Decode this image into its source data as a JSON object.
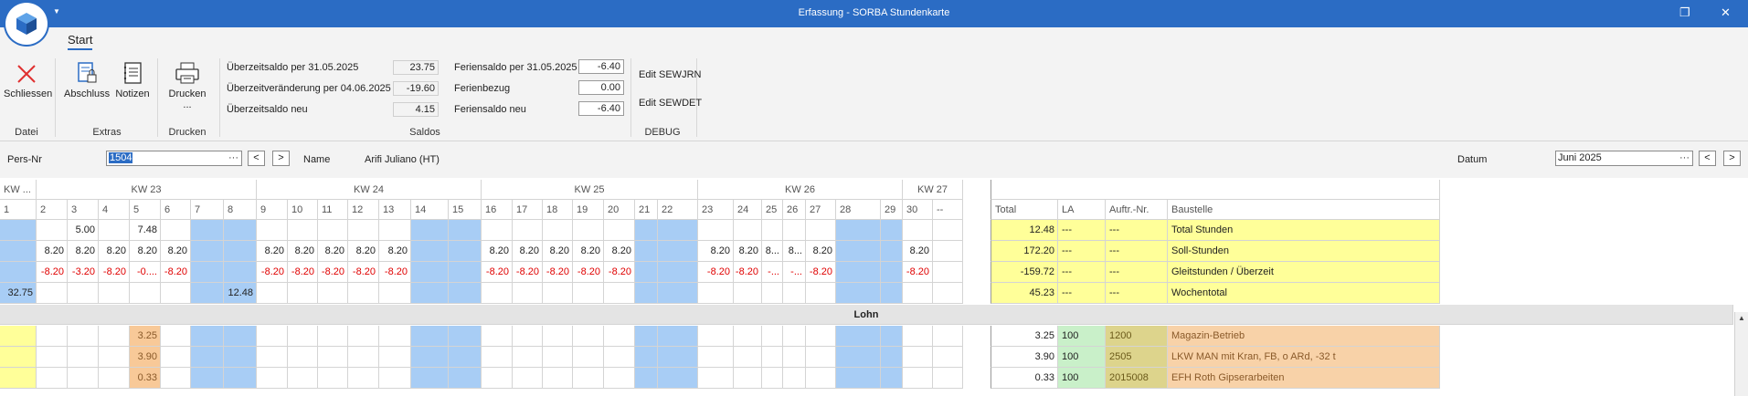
{
  "window": {
    "title": "Erfassung - SORBA Stundenkarte"
  },
  "ribbon": {
    "tab": "Start",
    "buttons": {
      "schliessen": "Schliessen",
      "abschluss": "Abschluss",
      "notizen": "Notizen",
      "drucken": "Drucken",
      "drucken_more": "..."
    },
    "groups": {
      "datei": "Datei",
      "extras": "Extras",
      "drucken": "Drucken",
      "saldos": "Saldos",
      "debug": "DEBUG"
    },
    "saldos": [
      {
        "label": "Überzeitsaldo per 31.05.2025",
        "value": "23.75"
      },
      {
        "label": "Überzeitveränderung per 04.06.2025",
        "value": "-19.60"
      },
      {
        "label": "Überzeitsaldo neu",
        "value": "4.15"
      }
    ],
    "ferien": [
      {
        "label": "Feriensaldo per 31.05.2025",
        "value": "-6.40"
      },
      {
        "label": "Ferienbezug",
        "value": "0.00"
      },
      {
        "label": "Feriensaldo neu",
        "value": "-6.40"
      }
    ],
    "debug": {
      "edit1": "Edit SEWJRN",
      "edit2": "Edit SEWDET"
    }
  },
  "filter": {
    "persnr_label": "Pers-Nr",
    "persnr_value": "1504",
    "combo_dots": "···",
    "prev": "<",
    "next": ">",
    "name_label": "Name",
    "name_value": "Arifi Juliano (HT)",
    "datum_label": "Datum",
    "datum_value": "Juni 2025"
  },
  "grid": {
    "weeks": [
      "KW ...",
      "KW 23",
      "KW 24",
      "KW 25",
      "KW 26",
      "KW 27"
    ],
    "days": [
      "1",
      "2",
      "3",
      "4",
      "5",
      "6",
      "7",
      "8",
      "9",
      "10",
      "11",
      "12",
      "13",
      "14",
      "15",
      "16",
      "17",
      "18",
      "19",
      "20",
      "21",
      "22",
      "23",
      "24",
      "25",
      "26",
      "27",
      "28",
      "29",
      "30",
      "--"
    ],
    "right_headers": [
      "Total",
      "LA",
      "Auftr.-Nr.",
      "Baustelle"
    ],
    "summary_rows": [
      {
        "cells": {
          "3": "5.00",
          "5": "7.48"
        },
        "total": "12.48",
        "la": "---",
        "auftr": "---",
        "baustelle": "Total Stunden"
      },
      {
        "cells": {
          "2": "8.20",
          "3": "8.20",
          "4": "8.20",
          "5": "8.20",
          "6": "8.20",
          "9": "8.20",
          "10": "8.20",
          "11": "8.20",
          "12": "8.20",
          "13": "8.20",
          "16": "8.20",
          "17": "8.20",
          "18": "8.20",
          "19": "8.20",
          "20": "8.20",
          "23": "8.20",
          "24": "8.20",
          "25": "8...",
          "26": "8...",
          "27": "8.20",
          "30": "8.20"
        },
        "total": "172.20",
        "la": "---",
        "auftr": "---",
        "baustelle": "Soll-Stunden"
      },
      {
        "cells": {
          "2": "-8.20",
          "3": "-3.20",
          "4": "-8.20",
          "5": "-0....",
          "6": "-8.20",
          "9": "-8.20",
          "10": "-8.20",
          "11": "-8.20",
          "12": "-8.20",
          "13": "-8.20",
          "16": "-8.20",
          "17": "-8.20",
          "18": "-8.20",
          "19": "-8.20",
          "20": "-8.20",
          "23": "-8.20",
          "24": "-8.20",
          "25": "-...",
          "26": "-...",
          "27": "-8.20",
          "30": "-8.20"
        },
        "total": "-159.72",
        "la": "---",
        "auftr": "---",
        "baustelle": "Gleitstunden / Überzeit"
      },
      {
        "cells": {
          "1": "32.75",
          "8": "12.48"
        },
        "total": "45.23",
        "la": "---",
        "auftr": "---",
        "baustelle": "Wochentotal"
      }
    ],
    "section_title": "Lohn",
    "lohn_rows": [
      {
        "cells": {
          "5": "3.25"
        },
        "total": "3.25",
        "la": "100",
        "auftr": "1200",
        "baustelle": "Magazin-Betrieb"
      },
      {
        "cells": {
          "5": "3.90"
        },
        "total": "3.90",
        "la": "100",
        "auftr": "2505",
        "baustelle": "LKW MAN mit Kran, FB, o ARd, -32 t"
      },
      {
        "cells": {
          "5": "0.33"
        },
        "total": "0.33",
        "la": "100",
        "auftr": "2015008",
        "baustelle": "EFH Roth Gipserarbeiten"
      }
    ]
  },
  "colors": {
    "accent": "#2b6cc4",
    "weekend": "#a8cdf5",
    "summary": "#ffff99",
    "negative": "#e00000",
    "lohn_day": "#f8c998",
    "lohn_baustelle": "#f8d2a8",
    "lohn_auftr": "#ddd48c",
    "la_green": "#c9f0c9"
  }
}
